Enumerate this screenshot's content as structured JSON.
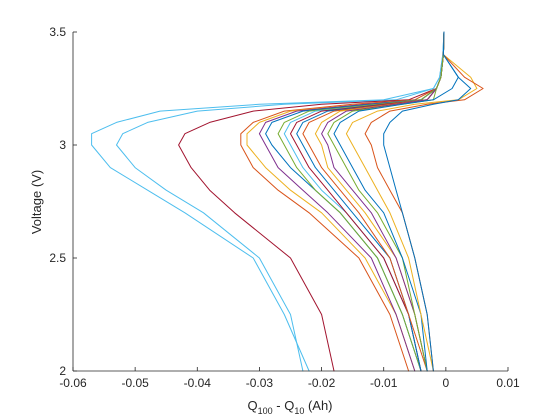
{
  "chart_data": {
    "type": "line",
    "title": "",
    "xlabel": "Q",
    "xlabel_sub1": "100",
    "xlabel_mid": " - Q",
    "xlabel_sub2": "10",
    "xlabel_tail": " (Ah)",
    "ylabel": "Voltage (V)",
    "xlim": [
      -0.06,
      0.01
    ],
    "ylim": [
      2,
      3.5
    ],
    "xticks": [
      -0.06,
      -0.05,
      -0.04,
      -0.03,
      -0.02,
      -0.01,
      0,
      0.01
    ],
    "xtick_labels": [
      "-0.06",
      "-0.05",
      "-0.04",
      "-0.03",
      "-0.02",
      "-0.01",
      "0",
      "0.01"
    ],
    "yticks": [
      2,
      2.5,
      3,
      3.5
    ],
    "ytick_labels": [
      "2",
      "2.5",
      "3",
      "3.5"
    ],
    "grid": false,
    "legend": "none",
    "colors": [
      "#0072BD",
      "#D95319",
      "#EDB120",
      "#7E2F8E",
      "#77AC30",
      "#4DBEEE",
      "#A2142F"
    ],
    "y_values": [
      2.0,
      2.25,
      2.5,
      2.7,
      2.8,
      2.9,
      3.0,
      3.05,
      3.1,
      3.15,
      3.18,
      3.2,
      3.25,
      3.3,
      3.4,
      3.5
    ],
    "series": [
      {
        "color": "#4DBEEE",
        "x": [
          -0.022,
          -0.026,
          -0.031,
          -0.042,
          -0.048,
          -0.054,
          -0.057,
          -0.057,
          -0.053,
          -0.046,
          -0.03,
          -0.01,
          -0.002,
          -0.001,
          -0.0005,
          -0.0003
        ]
      },
      {
        "color": "#4DBEEE",
        "x": [
          -0.023,
          -0.025,
          -0.03,
          -0.039,
          -0.045,
          -0.05,
          -0.053,
          -0.052,
          -0.048,
          -0.04,
          -0.026,
          -0.008,
          -0.002,
          -0.001,
          -0.0005,
          -0.0003
        ]
      },
      {
        "color": "#A2142F",
        "x": [
          -0.018,
          -0.02,
          -0.025,
          -0.034,
          -0.038,
          -0.041,
          -0.043,
          -0.042,
          -0.038,
          -0.031,
          -0.02,
          -0.006,
          -0.0015,
          -0.0008,
          -0.0004,
          -0.0003
        ]
      },
      {
        "color": "#D95319",
        "x": [
          -0.006,
          -0.009,
          -0.014,
          -0.022,
          -0.027,
          -0.031,
          -0.033,
          -0.033,
          -0.031,
          -0.026,
          -0.015,
          -0.005,
          -0.0015,
          -0.0008,
          -0.0004,
          -0.0003
        ]
      },
      {
        "color": "#EDB120",
        "x": [
          -0.005,
          -0.008,
          -0.013,
          -0.02,
          -0.025,
          -0.029,
          -0.032,
          -0.032,
          -0.03,
          -0.025,
          -0.013,
          -0.004,
          -0.0015,
          -0.0008,
          -0.0004,
          -0.0003
        ]
      },
      {
        "color": "#7E2F8E",
        "x": [
          -0.005,
          -0.008,
          -0.012,
          -0.019,
          -0.023,
          -0.027,
          -0.029,
          -0.03,
          -0.029,
          -0.024,
          -0.013,
          -0.004,
          -0.0015,
          -0.0008,
          -0.0004,
          -0.0003
        ]
      },
      {
        "color": "#0072BD",
        "x": [
          -0.004,
          -0.007,
          -0.011,
          -0.017,
          -0.021,
          -0.025,
          -0.028,
          -0.029,
          -0.028,
          -0.023,
          -0.012,
          -0.004,
          -0.0015,
          -0.0008,
          -0.0004,
          -0.0003
        ]
      },
      {
        "color": "#77AC30",
        "x": [
          -0.004,
          -0.007,
          -0.011,
          -0.017,
          -0.021,
          -0.024,
          -0.026,
          -0.027,
          -0.026,
          -0.022,
          -0.011,
          -0.004,
          -0.0015,
          -0.0008,
          -0.0004,
          -0.0003
        ]
      },
      {
        "color": "#4DBEEE",
        "x": [
          -0.004,
          -0.006,
          -0.01,
          -0.016,
          -0.02,
          -0.023,
          -0.025,
          -0.026,
          -0.025,
          -0.021,
          -0.01,
          -0.003,
          -0.0015,
          -0.0008,
          -0.0004,
          -0.0003
        ]
      },
      {
        "color": "#A2142F",
        "x": [
          -0.004,
          -0.006,
          -0.01,
          -0.016,
          -0.019,
          -0.022,
          -0.024,
          -0.025,
          -0.024,
          -0.02,
          -0.01,
          -0.003,
          -0.0015,
          -0.0008,
          -0.0004,
          -0.0003
        ]
      },
      {
        "color": "#0072BD",
        "x": [
          -0.004,
          -0.006,
          -0.009,
          -0.015,
          -0.018,
          -0.021,
          -0.023,
          -0.024,
          -0.023,
          -0.019,
          -0.009,
          -0.003,
          -0.0015,
          -0.0008,
          -0.0004,
          -0.0003
        ]
      },
      {
        "color": "#D95319",
        "x": [
          -0.003,
          -0.006,
          -0.009,
          -0.014,
          -0.017,
          -0.02,
          -0.022,
          -0.023,
          -0.022,
          -0.018,
          -0.009,
          -0.003,
          -0.0015,
          -0.0008,
          -0.0004,
          -0.0003
        ]
      },
      {
        "color": "#EDB120",
        "x": [
          -0.003,
          -0.005,
          -0.008,
          -0.013,
          -0.016,
          -0.019,
          -0.02,
          -0.021,
          -0.02,
          -0.017,
          -0.008,
          -0.003,
          -0.0015,
          -0.0008,
          -0.0004,
          -0.0003
        ]
      },
      {
        "color": "#7E2F8E",
        "x": [
          -0.003,
          -0.005,
          -0.008,
          -0.012,
          -0.015,
          -0.018,
          -0.019,
          -0.02,
          -0.019,
          -0.016,
          -0.008,
          -0.003,
          -0.0015,
          -0.0008,
          -0.0004,
          -0.0003
        ]
      },
      {
        "color": "#77AC30",
        "x": [
          -0.003,
          -0.005,
          -0.007,
          -0.011,
          -0.014,
          -0.016,
          -0.018,
          -0.019,
          -0.018,
          -0.015,
          -0.007,
          -0.002,
          -0.0015,
          -0.0008,
          -0.0004,
          -0.0003
        ]
      },
      {
        "color": "#0072BD",
        "x": [
          -0.003,
          -0.004,
          -0.007,
          -0.01,
          -0.013,
          -0.015,
          -0.017,
          -0.018,
          -0.017,
          -0.014,
          -0.007,
          -0.002,
          0.001,
          0.002,
          -0.0004,
          -0.0003
        ]
      },
      {
        "color": "#EDB120",
        "x": [
          -0.002,
          -0.004,
          -0.006,
          -0.009,
          -0.011,
          -0.013,
          -0.015,
          -0.016,
          -0.015,
          -0.011,
          -0.005,
          0.002,
          0.005,
          0.004,
          -0.0004,
          -0.0003
        ]
      },
      {
        "color": "#D95319",
        "x": [
          -0.002,
          -0.003,
          -0.005,
          -0.007,
          -0.009,
          -0.011,
          -0.012,
          -0.013,
          -0.012,
          -0.009,
          -0.003,
          0.003,
          0.006,
          0.003,
          -0.0004,
          -0.0003
        ]
      },
      {
        "color": "#0072BD",
        "x": [
          -0.002,
          -0.003,
          -0.005,
          -0.007,
          -0.008,
          -0.009,
          -0.01,
          -0.01,
          -0.009,
          -0.007,
          -0.002,
          0.002,
          0.004,
          0.002,
          -0.0004,
          -0.0003
        ]
      }
    ]
  }
}
